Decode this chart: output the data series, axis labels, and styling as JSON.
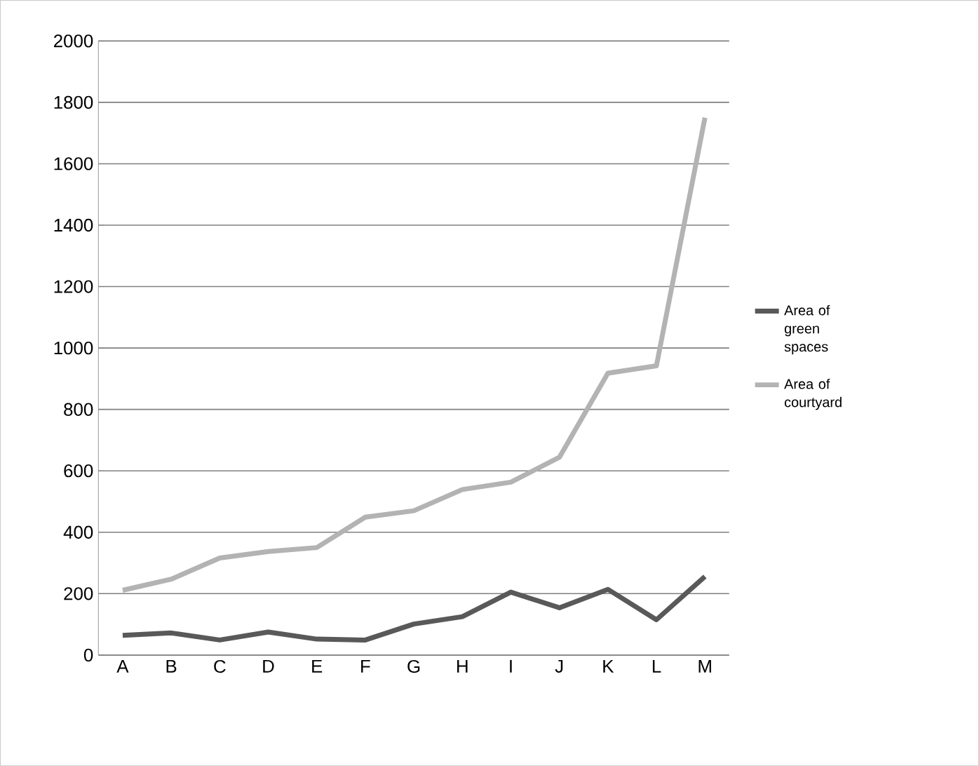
{
  "chart_data": {
    "type": "line",
    "categories": [
      "A",
      "B",
      "C",
      "D",
      "E",
      "F",
      "G",
      "H",
      "I",
      "J",
      "K",
      "L",
      "M"
    ],
    "series": [
      {
        "name": "Area of green spaces",
        "color": "#595959",
        "values": [
          64,
          72,
          49,
          75,
          52,
          49,
          101,
          125,
          205,
          154,
          214,
          115,
          256
        ]
      },
      {
        "name": "Area of courtyard",
        "color": "#b3b3b3",
        "values": [
          211,
          247,
          316,
          337,
          350,
          449,
          470,
          539,
          563,
          644,
          918,
          942,
          1750
        ]
      }
    ],
    "ylim": [
      0,
      2000
    ],
    "yticks": [
      0,
      200,
      400,
      600,
      800,
      1000,
      1200,
      1400,
      1600,
      1800,
      2000
    ],
    "grid": "y",
    "legend": "right",
    "line_style": "solid",
    "marker": "none"
  }
}
